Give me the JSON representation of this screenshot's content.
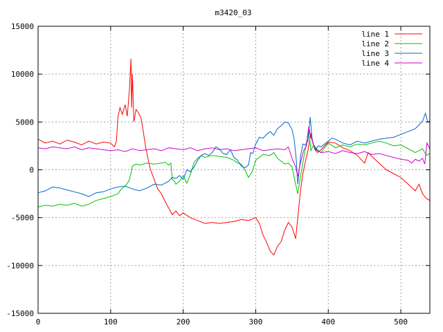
{
  "chart_data": {
    "type": "line",
    "title": "m3420_03",
    "xlabel": "",
    "ylabel": "",
    "xlim": [
      0,
      540
    ],
    "ylim": [
      -15000,
      15000
    ],
    "x_ticks": [
      0,
      100,
      200,
      300,
      400,
      500
    ],
    "y_ticks": [
      -15000,
      -10000,
      -5000,
      0,
      5000,
      10000,
      15000
    ],
    "grid": true,
    "legend_position": "top-right",
    "series": [
      {
        "name": "line 1",
        "color": "#ff0000",
        "points": [
          [
            0,
            3200
          ],
          [
            10,
            2800
          ],
          [
            20,
            3000
          ],
          [
            30,
            2700
          ],
          [
            40,
            3100
          ],
          [
            50,
            2900
          ],
          [
            60,
            2600
          ],
          [
            70,
            3000
          ],
          [
            80,
            2700
          ],
          [
            90,
            2900
          ],
          [
            100,
            2800
          ],
          [
            105,
            2400
          ],
          [
            108,
            3000
          ],
          [
            110,
            5500
          ],
          [
            113,
            6500
          ],
          [
            116,
            5800
          ],
          [
            120,
            6800
          ],
          [
            123,
            5600
          ],
          [
            126,
            8500
          ],
          [
            128,
            11600
          ],
          [
            129,
            6500
          ],
          [
            130,
            10000
          ],
          [
            132,
            5000
          ],
          [
            135,
            6300
          ],
          [
            138,
            6000
          ],
          [
            142,
            5400
          ],
          [
            145,
            4000
          ],
          [
            148,
            2500
          ],
          [
            152,
            1000
          ],
          [
            155,
            0
          ],
          [
            160,
            -1000
          ],
          [
            165,
            -2000
          ],
          [
            170,
            -2500
          ],
          [
            175,
            -3300
          ],
          [
            180,
            -4000
          ],
          [
            185,
            -4700
          ],
          [
            190,
            -4300
          ],
          [
            195,
            -4800
          ],
          [
            200,
            -4500
          ],
          [
            210,
            -5000
          ],
          [
            220,
            -5300
          ],
          [
            230,
            -5600
          ],
          [
            240,
            -5500
          ],
          [
            250,
            -5600
          ],
          [
            260,
            -5500
          ],
          [
            270,
            -5400
          ],
          [
            280,
            -5200
          ],
          [
            290,
            -5300
          ],
          [
            300,
            -5000
          ],
          [
            305,
            -5600
          ],
          [
            310,
            -6800
          ],
          [
            315,
            -7600
          ],
          [
            320,
            -8500
          ],
          [
            325,
            -8900
          ],
          [
            330,
            -8000
          ],
          [
            335,
            -7500
          ],
          [
            340,
            -6300
          ],
          [
            345,
            -5500
          ],
          [
            350,
            -6000
          ],
          [
            355,
            -7200
          ],
          [
            358,
            -5000
          ],
          [
            362,
            -2000
          ],
          [
            365,
            -400
          ],
          [
            368,
            700
          ],
          [
            372,
            2000
          ],
          [
            376,
            3800
          ],
          [
            380,
            2500
          ],
          [
            385,
            1800
          ],
          [
            390,
            2100
          ],
          [
            395,
            2500
          ],
          [
            400,
            2900
          ],
          [
            410,
            2800
          ],
          [
            420,
            2300
          ],
          [
            430,
            2000
          ],
          [
            440,
            1500
          ],
          [
            450,
            700
          ],
          [
            455,
            1800
          ],
          [
            460,
            1400
          ],
          [
            470,
            700
          ],
          [
            480,
            0
          ],
          [
            490,
            -400
          ],
          [
            500,
            -800
          ],
          [
            510,
            -1500
          ],
          [
            520,
            -2200
          ],
          [
            525,
            -1500
          ],
          [
            530,
            -2500
          ],
          [
            535,
            -3000
          ],
          [
            540,
            -3200
          ]
        ]
      },
      {
        "name": "line 2",
        "color": "#00c000",
        "points": [
          [
            0,
            -3900
          ],
          [
            10,
            -3700
          ],
          [
            20,
            -3800
          ],
          [
            30,
            -3600
          ],
          [
            40,
            -3700
          ],
          [
            50,
            -3500
          ],
          [
            60,
            -3800
          ],
          [
            70,
            -3600
          ],
          [
            80,
            -3200
          ],
          [
            90,
            -3000
          ],
          [
            100,
            -2800
          ],
          [
            110,
            -2500
          ],
          [
            115,
            -2000
          ],
          [
            120,
            -1700
          ],
          [
            125,
            -1200
          ],
          [
            128,
            -400
          ],
          [
            130,
            400
          ],
          [
            135,
            600
          ],
          [
            140,
            500
          ],
          [
            150,
            700
          ],
          [
            160,
            600
          ],
          [
            170,
            700
          ],
          [
            175,
            800
          ],
          [
            180,
            500
          ],
          [
            183,
            700
          ],
          [
            185,
            -1000
          ],
          [
            188,
            -1200
          ],
          [
            190,
            -1500
          ],
          [
            195,
            -1200
          ],
          [
            200,
            -600
          ],
          [
            205,
            -1400
          ],
          [
            210,
            -500
          ],
          [
            215,
            800
          ],
          [
            220,
            1200
          ],
          [
            225,
            1500
          ],
          [
            230,
            1300
          ],
          [
            240,
            1500
          ],
          [
            250,
            1400
          ],
          [
            260,
            1300
          ],
          [
            270,
            1000
          ],
          [
            275,
            700
          ],
          [
            280,
            600
          ],
          [
            285,
            0
          ],
          [
            290,
            -800
          ],
          [
            295,
            -200
          ],
          [
            300,
            1000
          ],
          [
            310,
            1600
          ],
          [
            320,
            1500
          ],
          [
            325,
            1800
          ],
          [
            330,
            1200
          ],
          [
            335,
            900
          ],
          [
            340,
            600
          ],
          [
            345,
            700
          ],
          [
            350,
            300
          ],
          [
            355,
            -1500
          ],
          [
            358,
            -2500
          ],
          [
            362,
            -600
          ],
          [
            366,
            1200
          ],
          [
            370,
            2800
          ],
          [
            373,
            4300
          ],
          [
            376,
            2000
          ],
          [
            380,
            2600
          ],
          [
            385,
            2100
          ],
          [
            390,
            1800
          ],
          [
            395,
            2300
          ],
          [
            400,
            2800
          ],
          [
            410,
            2300
          ],
          [
            420,
            2600
          ],
          [
            430,
            2400
          ],
          [
            440,
            2700
          ],
          [
            450,
            2600
          ],
          [
            460,
            2800
          ],
          [
            470,
            3000
          ],
          [
            480,
            2800
          ],
          [
            490,
            2500
          ],
          [
            500,
            2600
          ],
          [
            510,
            2200
          ],
          [
            520,
            1800
          ],
          [
            530,
            2200
          ],
          [
            535,
            1500
          ],
          [
            540,
            1700
          ]
        ]
      },
      {
        "name": "line 3",
        "color": "#0066cc",
        "points": [
          [
            0,
            -2400
          ],
          [
            10,
            -2200
          ],
          [
            20,
            -1800
          ],
          [
            30,
            -1900
          ],
          [
            40,
            -2100
          ],
          [
            50,
            -2300
          ],
          [
            60,
            -2500
          ],
          [
            70,
            -2800
          ],
          [
            80,
            -2400
          ],
          [
            90,
            -2300
          ],
          [
            100,
            -2000
          ],
          [
            110,
            -1800
          ],
          [
            120,
            -1700
          ],
          [
            130,
            -2000
          ],
          [
            140,
            -2200
          ],
          [
            150,
            -1900
          ],
          [
            160,
            -1500
          ],
          [
            170,
            -1600
          ],
          [
            180,
            -1200
          ],
          [
            185,
            -800
          ],
          [
            190,
            -900
          ],
          [
            195,
            -600
          ],
          [
            200,
            -1000
          ],
          [
            205,
            0
          ],
          [
            210,
            -200
          ],
          [
            215,
            300
          ],
          [
            220,
            1000
          ],
          [
            225,
            1500
          ],
          [
            230,
            1700
          ],
          [
            235,
            1500
          ],
          [
            240,
            1800
          ],
          [
            245,
            2400
          ],
          [
            250,
            2200
          ],
          [
            255,
            1700
          ],
          [
            260,
            1600
          ],
          [
            265,
            2100
          ],
          [
            270,
            1300
          ],
          [
            275,
            1000
          ],
          [
            280,
            400
          ],
          [
            285,
            200
          ],
          [
            290,
            500
          ],
          [
            293,
            1800
          ],
          [
            296,
            1700
          ],
          [
            300,
            2700
          ],
          [
            305,
            3400
          ],
          [
            310,
            3300
          ],
          [
            315,
            3700
          ],
          [
            320,
            4000
          ],
          [
            325,
            3600
          ],
          [
            330,
            4300
          ],
          [
            335,
            4600
          ],
          [
            340,
            5000
          ],
          [
            345,
            4900
          ],
          [
            350,
            4200
          ],
          [
            353,
            3200
          ],
          [
            356,
            1000
          ],
          [
            358,
            -1500
          ],
          [
            362,
            1500
          ],
          [
            365,
            2700
          ],
          [
            368,
            2600
          ],
          [
            372,
            3000
          ],
          [
            375,
            5500
          ],
          [
            378,
            3000
          ],
          [
            382,
            2000
          ],
          [
            386,
            2500
          ],
          [
            390,
            2400
          ],
          [
            395,
            2700
          ],
          [
            400,
            3000
          ],
          [
            405,
            3300
          ],
          [
            410,
            3200
          ],
          [
            420,
            2800
          ],
          [
            430,
            2600
          ],
          [
            440,
            3000
          ],
          [
            450,
            2800
          ],
          [
            460,
            3000
          ],
          [
            470,
            3200
          ],
          [
            480,
            3300
          ],
          [
            490,
            3400
          ],
          [
            500,
            3700
          ],
          [
            510,
            4000
          ],
          [
            520,
            4300
          ],
          [
            525,
            4700
          ],
          [
            530,
            5100
          ],
          [
            534,
            5900
          ],
          [
            537,
            5000
          ],
          [
            540,
            5100
          ]
        ]
      },
      {
        "name": "line 4",
        "color": "#cc00cc",
        "points": [
          [
            0,
            2300
          ],
          [
            10,
            2200
          ],
          [
            20,
            2400
          ],
          [
            30,
            2300
          ],
          [
            40,
            2200
          ],
          [
            50,
            2400
          ],
          [
            60,
            2100
          ],
          [
            70,
            2300
          ],
          [
            80,
            2200
          ],
          [
            90,
            2100
          ],
          [
            100,
            2000
          ],
          [
            110,
            2100
          ],
          [
            120,
            1900
          ],
          [
            130,
            2200
          ],
          [
            140,
            2000
          ],
          [
            150,
            2100
          ],
          [
            160,
            2200
          ],
          [
            170,
            2000
          ],
          [
            180,
            2300
          ],
          [
            190,
            2200
          ],
          [
            200,
            2100
          ],
          [
            210,
            2300
          ],
          [
            220,
            2000
          ],
          [
            230,
            2200
          ],
          [
            240,
            2300
          ],
          [
            250,
            2100
          ],
          [
            260,
            2200
          ],
          [
            270,
            2000
          ],
          [
            280,
            2100
          ],
          [
            290,
            2200
          ],
          [
            300,
            2300
          ],
          [
            310,
            2000
          ],
          [
            320,
            2100
          ],
          [
            330,
            2200
          ],
          [
            340,
            2100
          ],
          [
            345,
            2400
          ],
          [
            350,
            1200
          ],
          [
            355,
            300
          ],
          [
            358,
            -700
          ],
          [
            362,
            800
          ],
          [
            366,
            2000
          ],
          [
            370,
            2500
          ],
          [
            373,
            4500
          ],
          [
            376,
            3500
          ],
          [
            380,
            2500
          ],
          [
            385,
            2000
          ],
          [
            390,
            1800
          ],
          [
            400,
            1900
          ],
          [
            410,
            1700
          ],
          [
            420,
            2000
          ],
          [
            430,
            1800
          ],
          [
            440,
            1700
          ],
          [
            450,
            1900
          ],
          [
            460,
            1600
          ],
          [
            470,
            1700
          ],
          [
            480,
            1500
          ],
          [
            490,
            1300
          ],
          [
            500,
            1100
          ],
          [
            510,
            1000
          ],
          [
            515,
            700
          ],
          [
            520,
            1100
          ],
          [
            525,
            900
          ],
          [
            530,
            1200
          ],
          [
            533,
            600
          ],
          [
            536,
            2800
          ],
          [
            540,
            2200
          ]
        ]
      }
    ]
  }
}
